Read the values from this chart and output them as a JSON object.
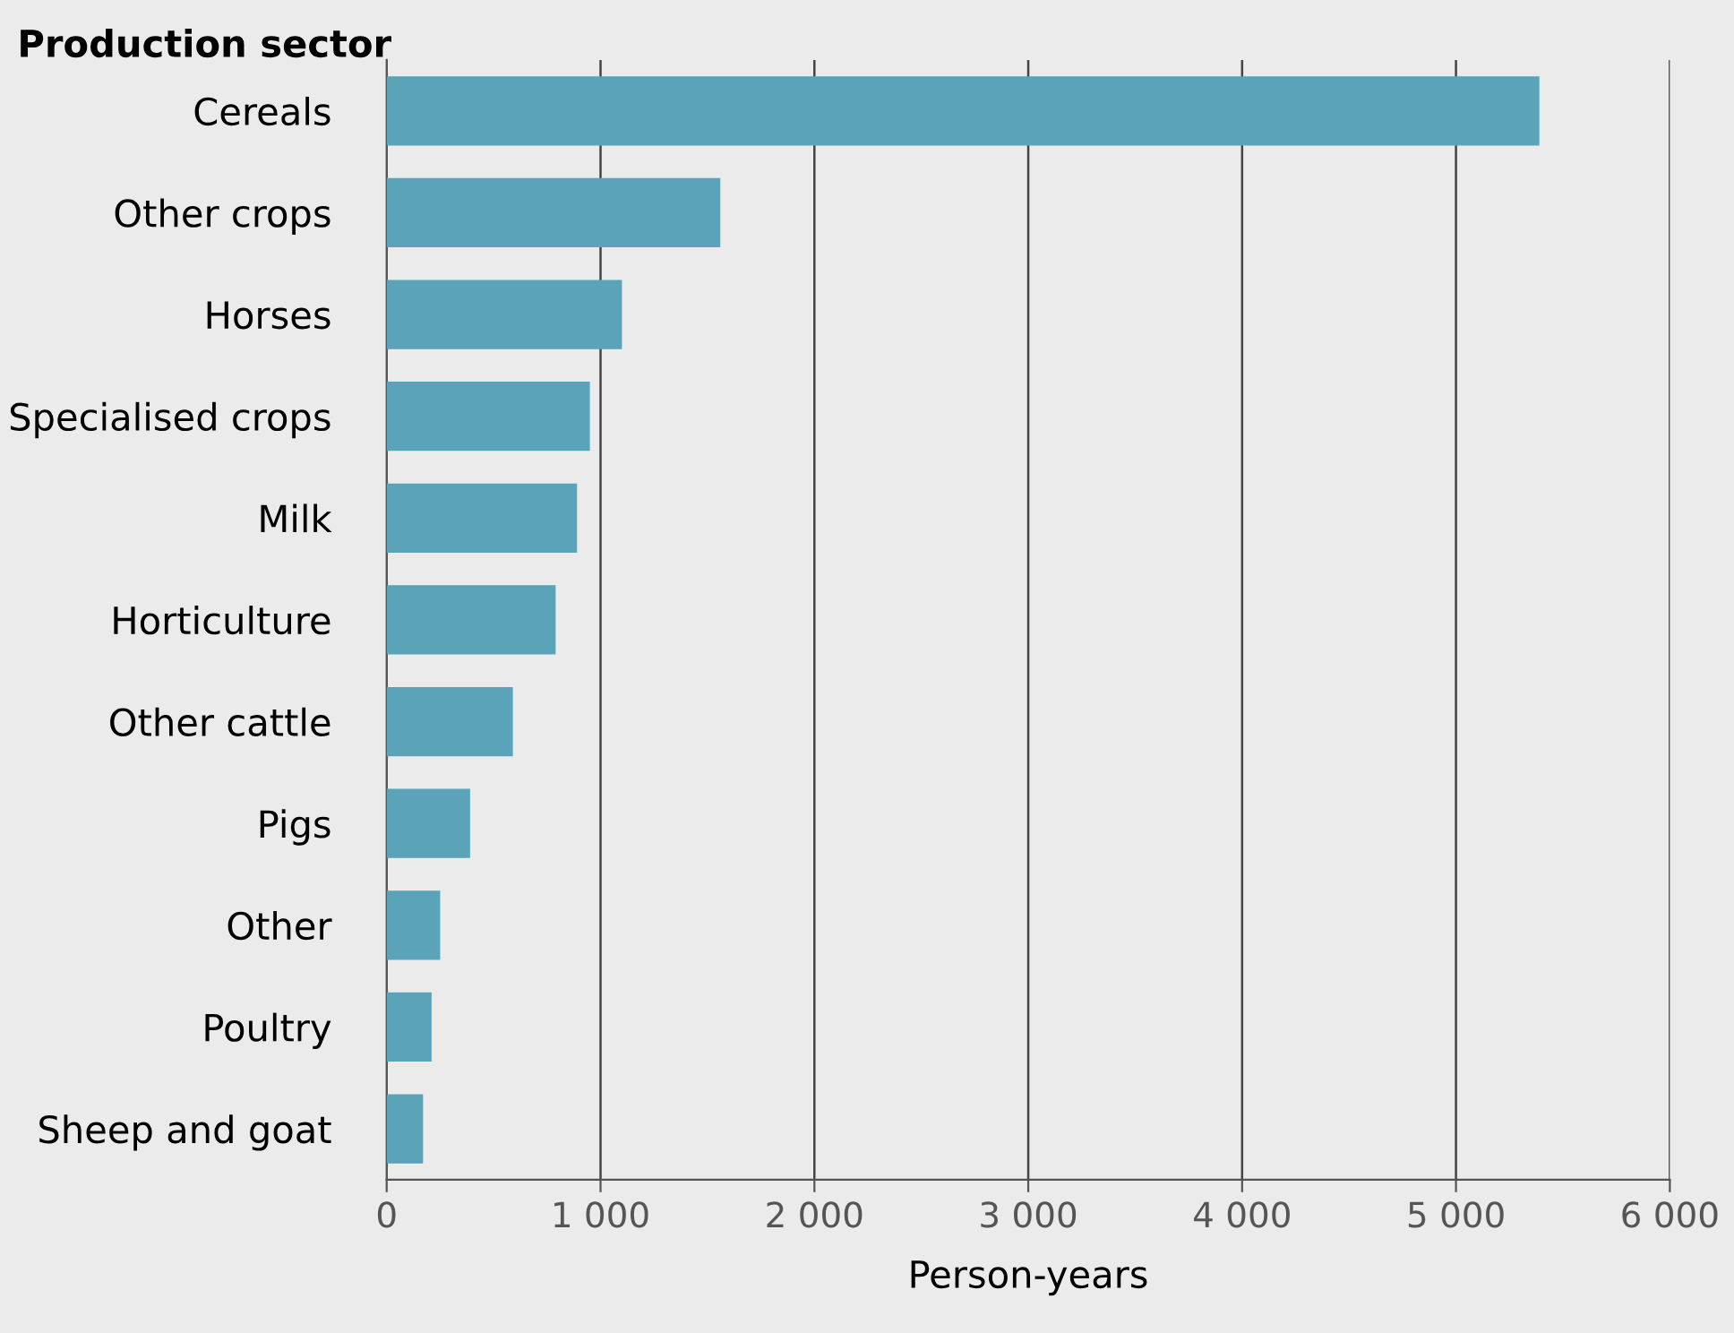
{
  "chart_data": {
    "type": "bar",
    "orientation": "horizontal",
    "ylabel": "Production sector",
    "xlabel": "Person-years",
    "categories": [
      "Cereals",
      "Other crops",
      "Horses",
      "Specialised crops",
      "Milk",
      "Horticulture",
      "Other cattle",
      "Pigs",
      "Other",
      "Poultry",
      "Sheep and goat"
    ],
    "values": [
      5390,
      1560,
      1100,
      950,
      890,
      790,
      590,
      390,
      250,
      210,
      170
    ],
    "color": "#5aa3b8",
    "xlim": [
      0,
      6000
    ],
    "xticks": [
      0,
      {
        "value": 1000,
        "label": "1 000"
      },
      {
        "value": 2000,
        "label": "2 000"
      },
      {
        "value": 3000,
        "label": "3 000"
      },
      {
        "value": 4000,
        "label": "4 000"
      },
      {
        "value": 5000,
        "label": "5 000"
      },
      {
        "value": 6000,
        "label": "6 000"
      }
    ],
    "grid": "x"
  }
}
